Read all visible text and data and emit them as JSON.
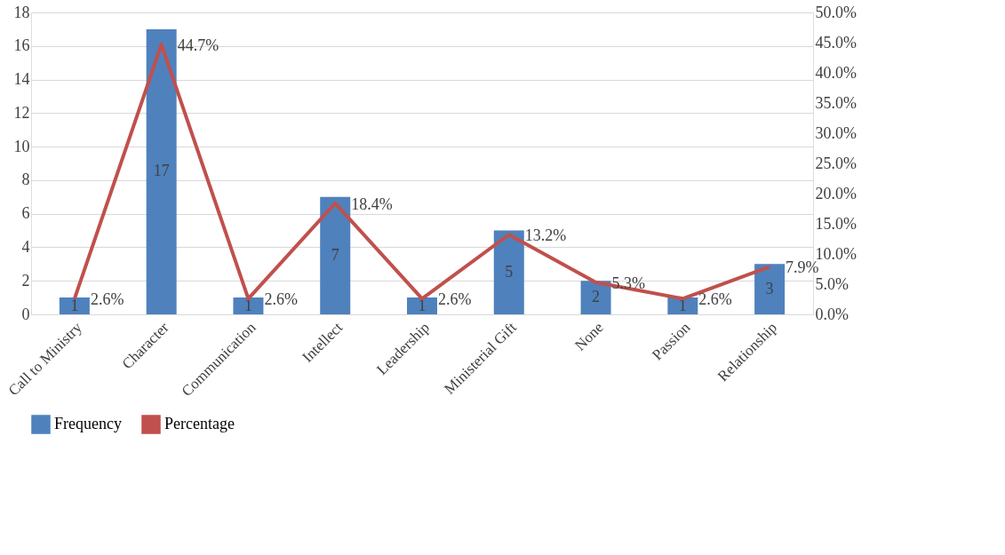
{
  "chart_data": {
    "type": "bar",
    "categories": [
      "Call to Ministry",
      "Character",
      "Communication",
      "Intellect",
      "Leadership",
      "Ministerial Gift",
      "None",
      "Passion",
      "Relationship"
    ],
    "series": [
      {
        "name": "Frequency",
        "color": "#4f81bd",
        "values": [
          1,
          17,
          1,
          7,
          1,
          5,
          2,
          1,
          3
        ]
      },
      {
        "name": "Percentage",
        "type": "line",
        "axis": "y2",
        "color": "#c0504d",
        "values": [
          2.6,
          44.7,
          2.6,
          18.4,
          2.6,
          13.2,
          5.3,
          2.6,
          7.9
        ],
        "value_labels": [
          "2.6%",
          "44.7%",
          "2.6%",
          "18.4%",
          "2.6%",
          "13.2%",
          "5.3%",
          "2.6%",
          "7.9%"
        ]
      }
    ],
    "data_labels": true,
    "ylim": [
      0,
      18
    ],
    "yticks": [
      0,
      2,
      4,
      6,
      8,
      10,
      12,
      14,
      16,
      18
    ],
    "y2lim": [
      0,
      50
    ],
    "y2ticks": [
      {
        "value": 0,
        "label": "0.0%"
      },
      {
        "value": 5,
        "label": "5.0%"
      },
      {
        "value": 10,
        "label": "10.0%"
      },
      {
        "value": 15,
        "label": "15.0%"
      },
      {
        "value": 20,
        "label": "20.0%"
      },
      {
        "value": 25,
        "label": "25.0%"
      },
      {
        "value": 30,
        "label": "30.0%"
      },
      {
        "value": 35,
        "label": "35.0%"
      },
      {
        "value": 40,
        "label": "40.0%"
      },
      {
        "value": 45,
        "label": "45.0%"
      },
      {
        "value": 50,
        "label": "50.0%"
      }
    ],
    "grid": "y",
    "legend": "bottom",
    "marker": "none",
    "line_style": "solid"
  }
}
